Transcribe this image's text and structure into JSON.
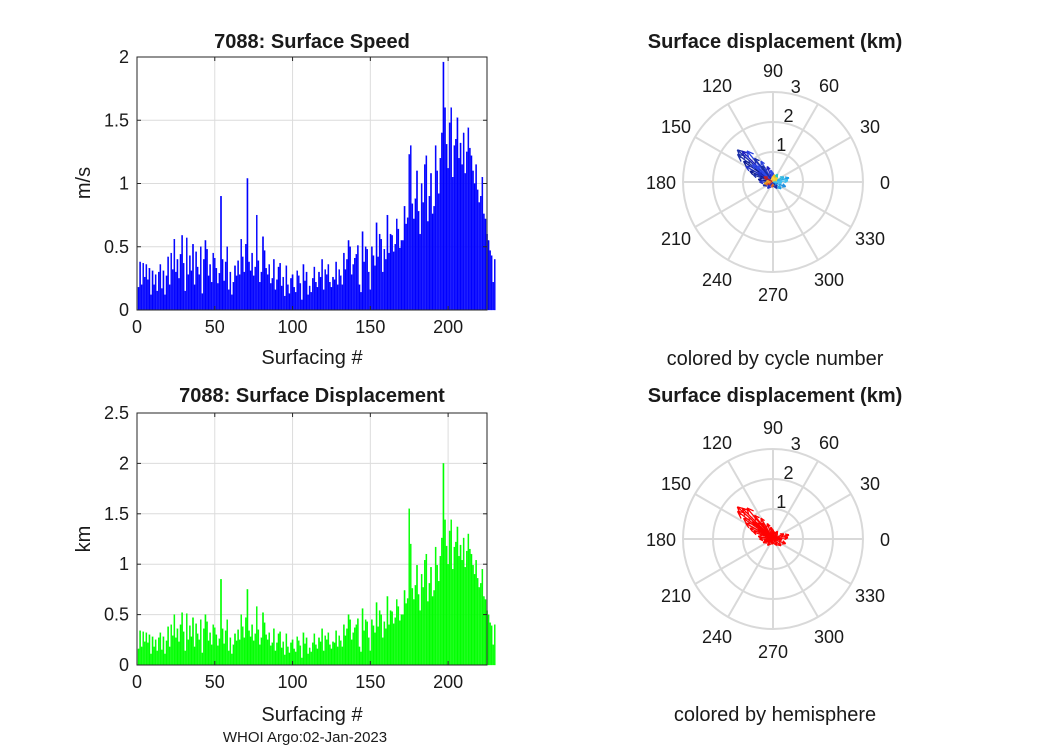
{
  "footer": "WHOI Argo:02-Jan-2023",
  "chart_data": [
    {
      "type": "bar",
      "id": "speed",
      "title": "7088: Surface Speed",
      "xlabel": "Surfacing #",
      "ylabel": "m/s",
      "xlim": [
        0,
        225
      ],
      "ylim": [
        0,
        2
      ],
      "xticks": [
        0,
        50,
        100,
        150,
        200
      ],
      "yticks": [
        0,
        0.5,
        1,
        1.5,
        2
      ],
      "ytick_labels": [
        "0",
        "0.5",
        "1",
        "1.5",
        "2"
      ],
      "bar_color": "#0000ff",
      "values": [
        0.18,
        0.38,
        0.2,
        0.37,
        0.26,
        0.36,
        0.24,
        0.33,
        0.12,
        0.31,
        0.2,
        0.28,
        0.15,
        0.3,
        0.36,
        0.17,
        0.31,
        0.12,
        0.27,
        0.42,
        0.2,
        0.45,
        0.32,
        0.56,
        0.3,
        0.4,
        0.25,
        0.44,
        0.59,
        0.37,
        0.15,
        0.57,
        0.28,
        0.43,
        0.31,
        0.52,
        0.2,
        0.46,
        0.34,
        0.28,
        0.5,
        0.13,
        0.4,
        0.55,
        0.48,
        0.27,
        0.36,
        0.22,
        0.45,
        0.41,
        0.33,
        0.21,
        0.29,
        0.9,
        0.4,
        0.23,
        0.38,
        0.5,
        0.16,
        0.3,
        0.12,
        0.22,
        0.35,
        0.27,
        0.39,
        0.28,
        0.56,
        0.42,
        0.3,
        0.52,
        1.04,
        0.38,
        0.31,
        0.45,
        0.27,
        0.34,
        0.75,
        0.39,
        0.22,
        0.3,
        0.58,
        0.47,
        0.33,
        0.28,
        0.36,
        0.21,
        0.25,
        0.4,
        0.16,
        0.24,
        0.34,
        0.37,
        0.19,
        0.26,
        0.11,
        0.35,
        0.2,
        0.13,
        0.25,
        0.28,
        0.18,
        0.14,
        0.31,
        0.27,
        0.21,
        0.08,
        0.36,
        0.23,
        0.3,
        0.12,
        0.19,
        0.14,
        0.25,
        0.34,
        0.22,
        0.18,
        0.3,
        0.26,
        0.4,
        0.16,
        0.32,
        0.28,
        0.36,
        0.22,
        0.18,
        0.26,
        0.24,
        0.38,
        0.2,
        0.32,
        0.27,
        0.2,
        0.45,
        0.32,
        0.4,
        0.55,
        0.5,
        0.28,
        0.36,
        0.41,
        0.44,
        0.51,
        0.2,
        0.14,
        0.62,
        0.38,
        0.5,
        0.48,
        0.3,
        0.16,
        0.5,
        0.43,
        0.35,
        0.69,
        0.42,
        0.6,
        0.56,
        0.3,
        0.48,
        0.4,
        0.75,
        0.45,
        0.6,
        0.59,
        0.46,
        0.52,
        0.72,
        0.64,
        0.49,
        0.55,
        0.55,
        0.82,
        0.68,
        0.73,
        1.23,
        1.3,
        0.84,
        0.72,
        0.88,
        1.1,
        0.78,
        0.6,
        1.0,
        0.85,
        1.15,
        1.22,
        0.7,
        0.9,
        1.08,
        0.76,
        0.82,
        1.3,
        1.1,
        0.92,
        1.2,
        1.4,
        1.96,
        1.6,
        1.31,
        1.12,
        1.48,
        1.6,
        1.05,
        1.3,
        1.35,
        1.52,
        1.2,
        1.32,
        1.15,
        1.4,
        1.08,
        1.25,
        1.44,
        1.28,
        1.22,
        1.1,
        1.0,
        1.15,
        0.95,
        0.85,
        0.9,
        1.05,
        0.76,
        0.72,
        0.6,
        0.55,
        0.47,
        0.43,
        0.22,
        0.4
      ]
    },
    {
      "type": "bar",
      "id": "displacement",
      "title": "7088: Surface Displacement",
      "xlabel": "Surfacing #",
      "ylabel": "km",
      "xlim": [
        0,
        225
      ],
      "ylim": [
        0,
        2.5
      ],
      "xticks": [
        0,
        50,
        100,
        150,
        200
      ],
      "yticks": [
        0,
        0.5,
        1,
        1.5,
        2,
        2.5
      ],
      "ytick_labels": [
        "0",
        "0.5",
        "1",
        "1.5",
        "2",
        "2.5"
      ],
      "bar_color": "#00ff00",
      "values": [
        0.16,
        0.34,
        0.18,
        0.33,
        0.23,
        0.32,
        0.22,
        0.3,
        0.11,
        0.28,
        0.18,
        0.25,
        0.14,
        0.27,
        0.32,
        0.15,
        0.28,
        0.11,
        0.24,
        0.38,
        0.18,
        0.4,
        0.29,
        0.5,
        0.27,
        0.36,
        0.23,
        0.4,
        0.52,
        0.33,
        0.14,
        0.51,
        0.25,
        0.39,
        0.28,
        0.47,
        0.18,
        0.41,
        0.31,
        0.25,
        0.45,
        0.12,
        0.36,
        0.5,
        0.43,
        0.24,
        0.32,
        0.2,
        0.4,
        0.37,
        0.3,
        0.19,
        0.26,
        0.85,
        0.36,
        0.21,
        0.34,
        0.45,
        0.14,
        0.27,
        0.11,
        0.2,
        0.31,
        0.24,
        0.35,
        0.25,
        0.5,
        0.38,
        0.27,
        0.47,
        0.75,
        0.34,
        0.28,
        0.4,
        0.24,
        0.31,
        0.58,
        0.35,
        0.2,
        0.27,
        0.52,
        0.42,
        0.3,
        0.25,
        0.32,
        0.19,
        0.22,
        0.36,
        0.14,
        0.22,
        0.31,
        0.33,
        0.17,
        0.23,
        0.1,
        0.31,
        0.18,
        0.12,
        0.22,
        0.25,
        0.16,
        0.13,
        0.28,
        0.24,
        0.19,
        0.07,
        0.32,
        0.21,
        0.27,
        0.11,
        0.17,
        0.13,
        0.22,
        0.31,
        0.2,
        0.16,
        0.27,
        0.23,
        0.36,
        0.14,
        0.29,
        0.25,
        0.32,
        0.2,
        0.16,
        0.23,
        0.22,
        0.34,
        0.18,
        0.29,
        0.24,
        0.18,
        0.4,
        0.29,
        0.36,
        0.5,
        0.45,
        0.25,
        0.32,
        0.37,
        0.4,
        0.46,
        0.18,
        0.13,
        0.56,
        0.34,
        0.45,
        0.43,
        0.27,
        0.14,
        0.45,
        0.39,
        0.32,
        0.62,
        0.38,
        0.54,
        0.5,
        0.27,
        0.43,
        0.36,
        0.68,
        0.4,
        0.54,
        0.53,
        0.41,
        0.47,
        0.65,
        0.58,
        0.44,
        0.5,
        0.5,
        0.74,
        0.61,
        0.66,
        1.55,
        1.2,
        0.76,
        0.65,
        0.79,
        0.99,
        0.7,
        0.54,
        0.9,
        0.77,
        1.04,
        1.1,
        0.63,
        0.81,
        0.97,
        0.68,
        0.74,
        1.17,
        0.99,
        0.83,
        1.08,
        1.26,
        2.0,
        1.44,
        1.18,
        1.0,
        1.33,
        1.44,
        0.95,
        1.17,
        1.22,
        1.37,
        1.08,
        1.19,
        1.04,
        1.26,
        0.97,
        1.13,
        1.3,
        1.15,
        1.1,
        0.99,
        0.9,
        1.04,
        0.86,
        0.77,
        0.81,
        0.95,
        0.68,
        0.65,
        0.54,
        0.5,
        0.42,
        0.39,
        0.2,
        0.4
      ]
    },
    {
      "type": "polar",
      "id": "polar-cycle",
      "title": "Surface displacement (km)",
      "caption": "colored by cycle number",
      "rmax": 3,
      "r_ticks": [
        "1",
        "2",
        "3"
      ],
      "theta_ticks": [
        "0",
        "30",
        "60",
        "90",
        "120",
        "150",
        "180",
        "210",
        "240",
        "270",
        "300",
        "330"
      ],
      "vectors": [
        {
          "theta": 138,
          "r": 1.6,
          "color": "#1a2ea8"
        },
        {
          "theta": 135,
          "r": 1.45,
          "color": "#2020c0"
        },
        {
          "theta": 142,
          "r": 1.5,
          "color": "#1a2ea8"
        },
        {
          "theta": 130,
          "r": 1.35,
          "color": "#2a40e0"
        },
        {
          "theta": 145,
          "r": 1.2,
          "color": "#0a1890"
        },
        {
          "theta": 150,
          "r": 1.05,
          "color": "#2030c8"
        },
        {
          "theta": 128,
          "r": 1.0,
          "color": "#1a2ea8"
        },
        {
          "theta": 140,
          "r": 0.9,
          "color": "#3048e8"
        },
        {
          "theta": 155,
          "r": 0.85,
          "color": "#0a1890"
        },
        {
          "theta": 120,
          "r": 0.8,
          "color": "#2a40e0"
        },
        {
          "theta": 160,
          "r": 0.7,
          "color": "#1a2ea8"
        },
        {
          "theta": 135,
          "r": 0.75,
          "color": "#3048e8"
        },
        {
          "theta": 110,
          "r": 0.55,
          "color": "#2020c0"
        },
        {
          "theta": 170,
          "r": 0.5,
          "color": "#0a1890"
        },
        {
          "theta": 148,
          "r": 0.6,
          "color": "#2030c8"
        },
        {
          "theta": 125,
          "r": 0.65,
          "color": "#1a2ea8"
        },
        {
          "theta": 100,
          "r": 0.4,
          "color": "#3048e8"
        },
        {
          "theta": 180,
          "r": 0.45,
          "color": "#2030c8"
        },
        {
          "theta": 200,
          "r": 0.35,
          "color": "#1a2ea8"
        },
        {
          "theta": 90,
          "r": 0.3,
          "color": "#2a40e0"
        },
        {
          "theta": 15,
          "r": 0.55,
          "color": "#18a0e8"
        },
        {
          "theta": 5,
          "r": 0.5,
          "color": "#40c0f0"
        },
        {
          "theta": 340,
          "r": 0.45,
          "color": "#2090e0"
        },
        {
          "theta": 25,
          "r": 0.4,
          "color": "#30b8e0"
        },
        {
          "theta": 320,
          "r": 0.35,
          "color": "#18a0e8"
        },
        {
          "theta": 60,
          "r": 0.3,
          "color": "#20c8c0"
        },
        {
          "theta": 190,
          "r": 0.3,
          "color": "#e8a020"
        },
        {
          "theta": 200,
          "r": 0.25,
          "color": "#e87020"
        },
        {
          "theta": 80,
          "r": 0.25,
          "color": "#f0c020"
        },
        {
          "theta": 210,
          "r": 0.2,
          "color": "#e03020"
        },
        {
          "theta": 170,
          "r": 0.22,
          "color": "#f0a030"
        },
        {
          "theta": 45,
          "r": 0.2,
          "color": "#f0d030"
        },
        {
          "theta": 260,
          "r": 0.18,
          "color": "#e06020"
        },
        {
          "theta": 300,
          "r": 0.25,
          "color": "#1a2ea8"
        },
        {
          "theta": 230,
          "r": 0.28,
          "color": "#2030c8"
        },
        {
          "theta": 150,
          "r": 0.35,
          "color": "#c02020"
        },
        {
          "theta": 95,
          "r": 0.18,
          "color": "#ffd040"
        },
        {
          "theta": 355,
          "r": 0.3,
          "color": "#40c0f0"
        }
      ]
    },
    {
      "type": "polar",
      "id": "polar-hemisphere",
      "title": "Surface displacement (km)",
      "caption": "colored by hemisphere",
      "rmax": 3,
      "r_ticks": [
        "1",
        "2",
        "3"
      ],
      "theta_ticks": [
        "0",
        "30",
        "60",
        "90",
        "120",
        "150",
        "180",
        "210",
        "240",
        "270",
        "300",
        "330"
      ],
      "vectors": [
        {
          "theta": 138,
          "r": 1.6,
          "color": "#ff0000"
        },
        {
          "theta": 135,
          "r": 1.45,
          "color": "#ff0000"
        },
        {
          "theta": 142,
          "r": 1.5,
          "color": "#ff0000"
        },
        {
          "theta": 130,
          "r": 1.35,
          "color": "#ff0000"
        },
        {
          "theta": 145,
          "r": 1.2,
          "color": "#ff0000"
        },
        {
          "theta": 150,
          "r": 1.05,
          "color": "#ff0000"
        },
        {
          "theta": 128,
          "r": 1.0,
          "color": "#ff0000"
        },
        {
          "theta": 140,
          "r": 0.9,
          "color": "#ff0000"
        },
        {
          "theta": 155,
          "r": 0.85,
          "color": "#ff0000"
        },
        {
          "theta": 120,
          "r": 0.8,
          "color": "#ff0000"
        },
        {
          "theta": 160,
          "r": 0.7,
          "color": "#ff0000"
        },
        {
          "theta": 135,
          "r": 0.75,
          "color": "#ff0000"
        },
        {
          "theta": 110,
          "r": 0.55,
          "color": "#ff0000"
        },
        {
          "theta": 170,
          "r": 0.5,
          "color": "#ff0000"
        },
        {
          "theta": 148,
          "r": 0.6,
          "color": "#ff0000"
        },
        {
          "theta": 125,
          "r": 0.65,
          "color": "#ff0000"
        },
        {
          "theta": 100,
          "r": 0.4,
          "color": "#ff0000"
        },
        {
          "theta": 180,
          "r": 0.45,
          "color": "#ff0000"
        },
        {
          "theta": 200,
          "r": 0.35,
          "color": "#ff0000"
        },
        {
          "theta": 90,
          "r": 0.3,
          "color": "#ff0000"
        },
        {
          "theta": 15,
          "r": 0.55,
          "color": "#ff0000"
        },
        {
          "theta": 5,
          "r": 0.5,
          "color": "#ff0000"
        },
        {
          "theta": 340,
          "r": 0.45,
          "color": "#ff0000"
        },
        {
          "theta": 25,
          "r": 0.4,
          "color": "#ff0000"
        },
        {
          "theta": 320,
          "r": 0.35,
          "color": "#ff0000"
        },
        {
          "theta": 60,
          "r": 0.3,
          "color": "#ff0000"
        },
        {
          "theta": 190,
          "r": 0.3,
          "color": "#ff0000"
        },
        {
          "theta": 200,
          "r": 0.25,
          "color": "#ff0000"
        },
        {
          "theta": 80,
          "r": 0.25,
          "color": "#ff0000"
        },
        {
          "theta": 210,
          "r": 0.2,
          "color": "#ff0000"
        },
        {
          "theta": 170,
          "r": 0.22,
          "color": "#ff0000"
        },
        {
          "theta": 45,
          "r": 0.2,
          "color": "#ff0000"
        },
        {
          "theta": 260,
          "r": 0.18,
          "color": "#ff0000"
        },
        {
          "theta": 300,
          "r": 0.25,
          "color": "#ff0000"
        },
        {
          "theta": 230,
          "r": 0.28,
          "color": "#ff0000"
        },
        {
          "theta": 150,
          "r": 0.35,
          "color": "#ff0000"
        },
        {
          "theta": 95,
          "r": 0.18,
          "color": "#ff0000"
        },
        {
          "theta": 355,
          "r": 0.3,
          "color": "#ff0000"
        }
      ]
    }
  ]
}
